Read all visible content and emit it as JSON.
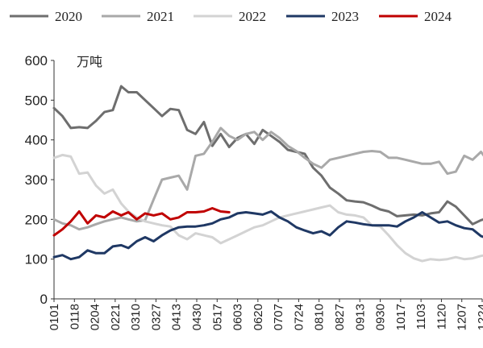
{
  "chart_data": {
    "type": "line",
    "ylabel": "万吨",
    "ylim": [
      0,
      600
    ],
    "yticks": [
      0,
      100,
      200,
      300,
      400,
      500,
      600
    ],
    "xticks": [
      "0101",
      "0118",
      "0204",
      "0221",
      "0310",
      "0327",
      "0413",
      "0430",
      "0517",
      "0603",
      "0620",
      "0707",
      "0724",
      "0810",
      "0827",
      "0913",
      "0930",
      "1017",
      "1103",
      "1120",
      "1207",
      "1224"
    ],
    "x_range": [
      "0101",
      "1224"
    ],
    "legend_position": "top",
    "grid": false,
    "series": [
      {
        "name": "2020",
        "color": "#6e6e6e",
        "x": [
          "0101",
          "0108",
          "0115",
          "0122",
          "0129",
          "0205",
          "0212",
          "0219",
          "0226",
          "0304",
          "0311",
          "0318",
          "0325",
          "0401",
          "0408",
          "0415",
          "0422",
          "0429",
          "0506",
          "0513",
          "0520",
          "0527",
          "0603",
          "0610",
          "0617",
          "0624",
          "0701",
          "0708",
          "0715",
          "0722",
          "0729",
          "0805",
          "0812",
          "0819",
          "0826",
          "0902",
          "0909",
          "0916",
          "0923",
          "0930",
          "1007",
          "1014",
          "1021",
          "1028",
          "1104",
          "1111",
          "1118",
          "1125",
          "1202",
          "1209",
          "1216",
          "1223",
          "1231"
        ],
        "values": [
          480,
          460,
          430,
          432,
          430,
          448,
          470,
          475,
          535,
          520,
          520,
          500,
          480,
          460,
          478,
          475,
          425,
          415,
          445,
          385,
          415,
          382,
          405,
          415,
          390,
          425,
          410,
          395,
          375,
          370,
          365,
          330,
          310,
          280,
          265,
          248,
          245,
          243,
          235,
          225,
          220,
          208,
          210,
          212,
          210,
          215,
          218,
          245,
          232,
          210,
          188,
          198,
          205
        ]
      },
      {
        "name": "2021",
        "color": "#a9a9a9",
        "x": [
          "0101",
          "0108",
          "0115",
          "0122",
          "0129",
          "0205",
          "0212",
          "0219",
          "0226",
          "0304",
          "0311",
          "0318",
          "0325",
          "0401",
          "0408",
          "0415",
          "0422",
          "0429",
          "0506",
          "0513",
          "0520",
          "0527",
          "0603",
          "0610",
          "0617",
          "0624",
          "0701",
          "0708",
          "0715",
          "0722",
          "0729",
          "0805",
          "0812",
          "0819",
          "0826",
          "0902",
          "0909",
          "0916",
          "0923",
          "0930",
          "1007",
          "1014",
          "1021",
          "1028",
          "1104",
          "1111",
          "1118",
          "1125",
          "1202",
          "1209",
          "1216",
          "1223",
          "1231"
        ],
        "values": [
          200,
          190,
          185,
          175,
          180,
          188,
          195,
          200,
          205,
          200,
          195,
          198,
          250,
          300,
          305,
          310,
          275,
          360,
          365,
          395,
          430,
          410,
          400,
          415,
          420,
          400,
          420,
          405,
          385,
          372,
          355,
          340,
          330,
          350,
          355,
          360,
          365,
          370,
          372,
          370,
          355,
          355,
          350,
          345,
          340,
          340,
          345,
          315,
          320,
          360,
          350,
          370,
          338
        ]
      },
      {
        "name": "2022",
        "color": "#d3d3d3",
        "x": [
          "0101",
          "0108",
          "0115",
          "0122",
          "0129",
          "0205",
          "0212",
          "0219",
          "0226",
          "0304",
          "0311",
          "0318",
          "0325",
          "0401",
          "0408",
          "0415",
          "0422",
          "0429",
          "0506",
          "0513",
          "0520",
          "0527",
          "0603",
          "0610",
          "0617",
          "0624",
          "0701",
          "0708",
          "0715",
          "0722",
          "0729",
          "0805",
          "0812",
          "0819",
          "0826",
          "0902",
          "0909",
          "0916",
          "0923",
          "0930",
          "1007",
          "1014",
          "1021",
          "1028",
          "1104",
          "1111",
          "1118",
          "1125",
          "1202",
          "1209",
          "1216",
          "1223",
          "1231"
        ],
        "values": [
          355,
          362,
          358,
          315,
          318,
          285,
          265,
          275,
          240,
          220,
          205,
          195,
          190,
          185,
          182,
          160,
          150,
          165,
          160,
          155,
          140,
          150,
          160,
          170,
          180,
          185,
          195,
          205,
          210,
          215,
          220,
          225,
          230,
          235,
          218,
          212,
          210,
          205,
          185,
          182,
          160,
          135,
          115,
          102,
          95,
          100,
          98,
          100,
          105,
          100,
          102,
          108,
          112
        ]
      },
      {
        "name": "2023",
        "color": "#1f3864",
        "x": [
          "0101",
          "0108",
          "0115",
          "0122",
          "0129",
          "0205",
          "0212",
          "0219",
          "0226",
          "0304",
          "0311",
          "0318",
          "0325",
          "0401",
          "0408",
          "0415",
          "0422",
          "0429",
          "0506",
          "0513",
          "0520",
          "0527",
          "0603",
          "0610",
          "0617",
          "0624",
          "0701",
          "0708",
          "0715",
          "0722",
          "0729",
          "0805",
          "0812",
          "0819",
          "0826",
          "0902",
          "0909",
          "0916",
          "0923",
          "0930",
          "1007",
          "1014",
          "1021",
          "1028",
          "1104",
          "1111",
          "1118",
          "1125",
          "1202",
          "1209",
          "1216",
          "1223",
          "1231"
        ],
        "values": [
          105,
          110,
          100,
          105,
          122,
          115,
          115,
          132,
          135,
          128,
          145,
          155,
          145,
          160,
          172,
          180,
          182,
          182,
          185,
          190,
          200,
          205,
          215,
          218,
          215,
          212,
          220,
          205,
          195,
          180,
          172,
          165,
          170,
          160,
          180,
          195,
          192,
          188,
          185,
          185,
          185,
          182,
          195,
          205,
          218,
          205,
          192,
          195,
          185,
          178,
          175,
          158,
          150
        ]
      },
      {
        "name": "2024",
        "color": "#c00000",
        "x": [
          "0101",
          "0108",
          "0115",
          "0122",
          "0129",
          "0205",
          "0212",
          "0219",
          "0226",
          "0304",
          "0311",
          "0318",
          "0325",
          "0401",
          "0408",
          "0415",
          "0422",
          "0429",
          "0506",
          "0513",
          "0520",
          "0527"
        ],
        "values": [
          160,
          175,
          195,
          220,
          190,
          210,
          205,
          220,
          210,
          218,
          200,
          215,
          210,
          215,
          200,
          205,
          218,
          218,
          220,
          228,
          220,
          218
        ]
      }
    ]
  }
}
